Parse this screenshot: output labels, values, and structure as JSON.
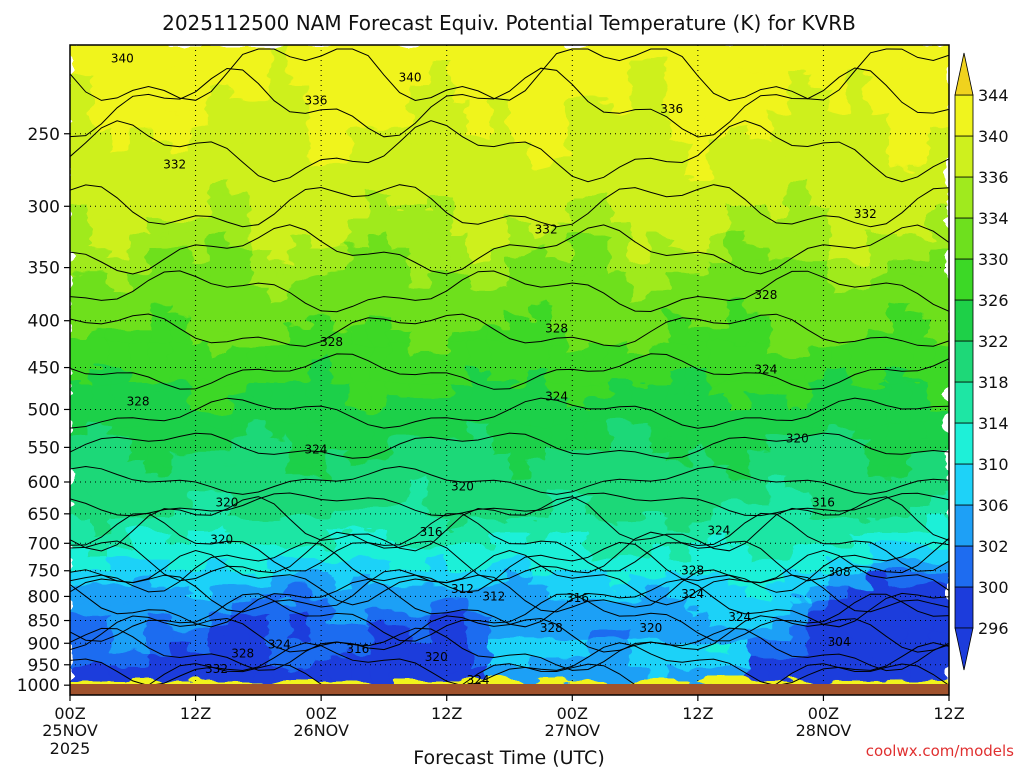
{
  "chart_data": {
    "type": "heatmap",
    "title": "2025112500 NAM Forecast Equiv. Potential Temperature (K) for KVRB",
    "xlabel": "Forecast Time (UTC)",
    "ylabel": "",
    "credit": "coolwx.com/models",
    "x_range_hours": [
      0,
      84
    ],
    "x_ticks": [
      {
        "hour": 0,
        "time": "00Z",
        "date": "25NOV",
        "year": "2025"
      },
      {
        "hour": 12,
        "time": "12Z",
        "date": "",
        "year": ""
      },
      {
        "hour": 24,
        "time": "00Z",
        "date": "26NOV",
        "year": ""
      },
      {
        "hour": 36,
        "time": "12Z",
        "date": "",
        "year": ""
      },
      {
        "hour": 48,
        "time": "00Z",
        "date": "27NOV",
        "year": ""
      },
      {
        "hour": 60,
        "time": "12Z",
        "date": "",
        "year": ""
      },
      {
        "hour": 72,
        "time": "00Z",
        "date": "28NOV",
        "year": ""
      },
      {
        "hour": 84,
        "time": "12Z",
        "date": "",
        "year": ""
      }
    ],
    "y_axis": {
      "scale": "log",
      "reversed": true,
      "range": [
        1025,
        200
      ],
      "ticks": [
        250,
        300,
        350,
        400,
        450,
        500,
        550,
        600,
        650,
        700,
        750,
        800,
        850,
        900,
        950,
        1000
      ]
    },
    "grid": true,
    "colorbar": {
      "levels": [
        296,
        300,
        302,
        306,
        310,
        314,
        318,
        322,
        326,
        330,
        334,
        336,
        340,
        344
      ],
      "colors": [
        "#1c3cdc",
        "#1e6cf0",
        "#1ea0f6",
        "#1ed2f8",
        "#1ef0d8",
        "#1ee6a4",
        "#1ed878",
        "#1ed048",
        "#3cd826",
        "#6ee01e",
        "#a0ea1e",
        "#cef01e",
        "#f0f41e"
      ],
      "extend": "both"
    },
    "contour_labels": [
      {
        "hour": 5.0,
        "p": 207,
        "text": "340"
      },
      {
        "hour": 32.5,
        "p": 217,
        "text": "340"
      },
      {
        "hour": 23.5,
        "p": 230,
        "text": "336"
      },
      {
        "hour": 57.5,
        "p": 235,
        "text": "336"
      },
      {
        "hour": 10.0,
        "p": 270,
        "text": "332"
      },
      {
        "hour": 45.5,
        "p": 318,
        "text": "332"
      },
      {
        "hour": 76.0,
        "p": 306,
        "text": "332"
      },
      {
        "hour": 25.0,
        "p": 422,
        "text": "328"
      },
      {
        "hour": 46.5,
        "p": 408,
        "text": "328"
      },
      {
        "hour": 66.5,
        "p": 375,
        "text": "328"
      },
      {
        "hour": 6.5,
        "p": 490,
        "text": "328"
      },
      {
        "hour": 66.5,
        "p": 452,
        "text": "324"
      },
      {
        "hour": 46.5,
        "p": 484,
        "text": "324"
      },
      {
        "hour": 23.5,
        "p": 553,
        "text": "324"
      },
      {
        "hour": 69.5,
        "p": 538,
        "text": "320"
      },
      {
        "hour": 37.5,
        "p": 607,
        "text": "320"
      },
      {
        "hour": 15.0,
        "p": 632,
        "text": "320"
      },
      {
        "hour": 72.0,
        "p": 632,
        "text": "316"
      },
      {
        "hour": 34.5,
        "p": 680,
        "text": "316"
      },
      {
        "hour": 14.5,
        "p": 693,
        "text": "320"
      },
      {
        "hour": 62.0,
        "p": 678,
        "text": "324"
      },
      {
        "hour": 59.5,
        "p": 750,
        "text": "328"
      },
      {
        "hour": 73.5,
        "p": 752,
        "text": "308"
      },
      {
        "hour": 37.5,
        "p": 785,
        "text": "312"
      },
      {
        "hour": 40.5,
        "p": 800,
        "text": "312"
      },
      {
        "hour": 48.5,
        "p": 803,
        "text": "316"
      },
      {
        "hour": 59.5,
        "p": 795,
        "text": "324"
      },
      {
        "hour": 46.0,
        "p": 866,
        "text": "328"
      },
      {
        "hour": 55.5,
        "p": 866,
        "text": "320"
      },
      {
        "hour": 64.0,
        "p": 843,
        "text": "324"
      },
      {
        "hour": 73.5,
        "p": 897,
        "text": "304"
      },
      {
        "hour": 20.0,
        "p": 903,
        "text": "324"
      },
      {
        "hour": 27.5,
        "p": 913,
        "text": "316"
      },
      {
        "hour": 16.5,
        "p": 923,
        "text": "328"
      },
      {
        "hour": 35.0,
        "p": 932,
        "text": "320"
      },
      {
        "hour": 14.0,
        "p": 960,
        "text": "332"
      },
      {
        "hour": 39.0,
        "p": 987,
        "text": "324"
      }
    ]
  }
}
